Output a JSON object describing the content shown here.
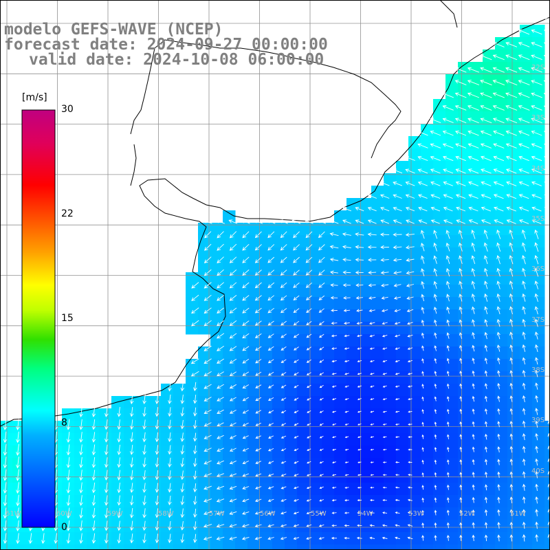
{
  "title": {
    "line1": "modelo GEFS-WAVE (NCEP)",
    "line2": "forecast date: 2024-09-27 00:00:00",
    "line3": "valid date: 2024-10-08 06:00:00"
  },
  "colorbar": {
    "unit": "[m/s]",
    "ticks": [
      "30",
      "22",
      "15",
      "8",
      "0"
    ],
    "tick_values": [
      30,
      22,
      15,
      8,
      0
    ],
    "range": [
      0,
      30
    ],
    "colors": [
      "#0000ff",
      "#0070ff",
      "#00c8ff",
      "#00ffff",
      "#00ff60",
      "#40e000",
      "#ffff00",
      "#ffa000",
      "#ff4000",
      "#ff0000",
      "#e00060",
      "#c00080"
    ]
  },
  "map": {
    "variable": "wind speed and direction",
    "land_color": "#ffffff",
    "grid": true,
    "lat_labels": [
      "32S",
      "33S",
      "34S",
      "35S",
      "36S",
      "37S",
      "38S",
      "39S",
      "40S"
    ],
    "lon_labels": [
      "61W",
      "60W",
      "59W",
      "58W",
      "57W",
      "56W",
      "55W",
      "54W",
      "53W",
      "52W",
      "51W"
    ]
  }
}
